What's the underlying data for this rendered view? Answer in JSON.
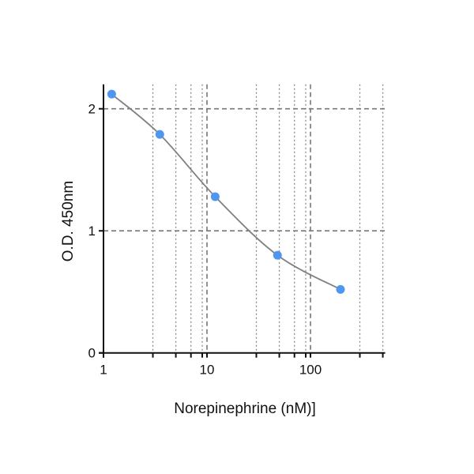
{
  "chart_data": {
    "type": "scatter",
    "title": "",
    "xlabel": "Norepinephrine (nM)]",
    "ylabel": "O.D. 450nm",
    "x_scale": "log",
    "xlim": [
      1,
      500
    ],
    "ylim": [
      0,
      2.2
    ],
    "x_ticks": [
      1,
      10,
      100
    ],
    "x_tick_labels": [
      "1",
      "10",
      "100"
    ],
    "x_minor_ticks": [
      3,
      5,
      7,
      9,
      30,
      50,
      70,
      90,
      300,
      500
    ],
    "y_ticks": [
      0,
      1,
      2
    ],
    "y_tick_labels": [
      "0",
      "1",
      "2"
    ],
    "grid": true,
    "series": [
      {
        "x": [
          1.2,
          3.5,
          12,
          48,
          195
        ],
        "y": [
          2.12,
          1.79,
          1.28,
          0.8,
          0.52
        ],
        "marker_color": "#4f96f0",
        "fit_curve": true,
        "curve_color": "#808080"
      }
    ]
  }
}
